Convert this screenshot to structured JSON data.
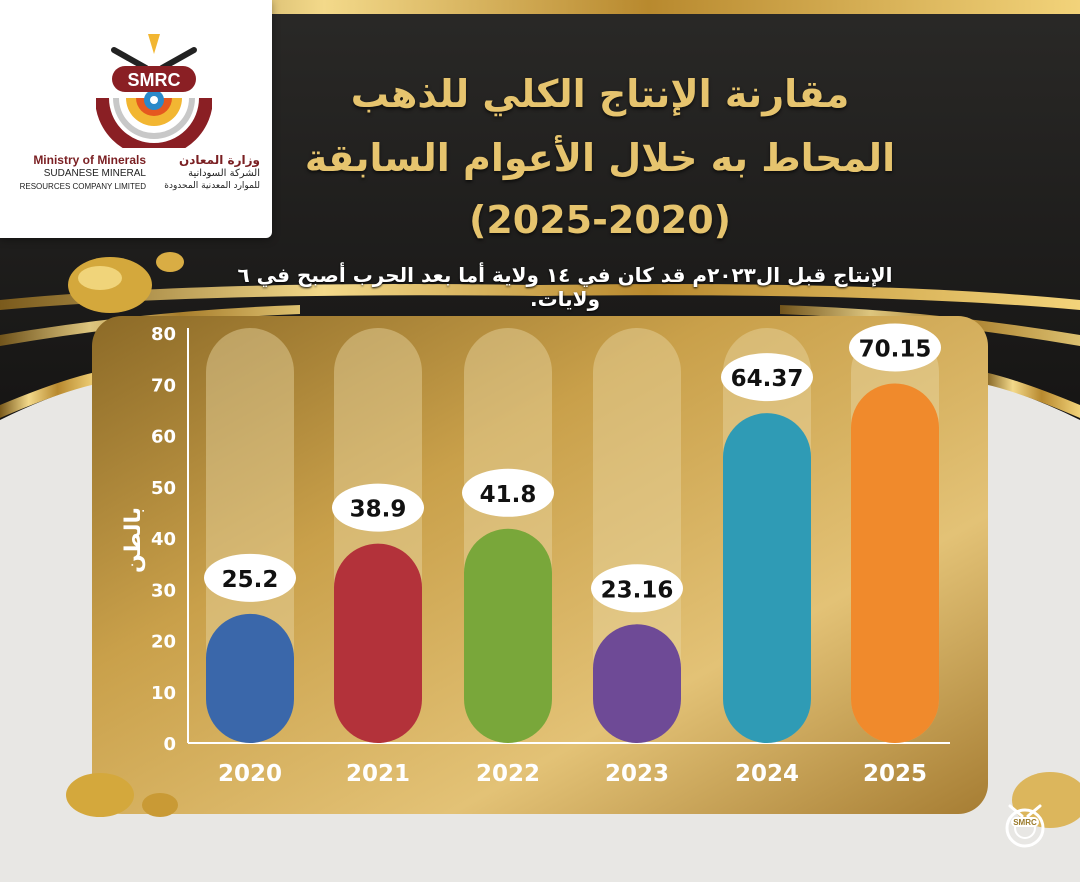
{
  "logo": {
    "acronym": "SMRC",
    "en_line1": "Ministry of Minerals",
    "en_line2": "SUDANESE MINERAL",
    "en_line3": "RESOURCES COMPANY LIMITED",
    "ar_line1": "وزارة المعادن",
    "ar_line2": "الشركة السودانية",
    "ar_line3": "للموارد المعدنية المحدودة"
  },
  "corner_logo": {
    "acronym": "SMRC"
  },
  "colors": {
    "gold": "#e6c46e",
    "panel_gold": "#c9a04a",
    "bar_2020": "#3a67aa",
    "bar_2021": "#b3323a",
    "bar_2022": "#79a73a",
    "bar_2023": "#6e4a96",
    "bar_2024": "#2f9bb5",
    "bar_2025": "#f08a2c"
  },
  "chart_data": {
    "type": "bar",
    "title_line1": "مقارنة الإنتاج الكلي للذهب",
    "title_line2": "المحاط به خلال الأعوام السابقة",
    "title_line3": "(2025-2020)",
    "subtitle": "الإنتاج قبل ال٢٠٢٣م قد كان في ١٤ ولاية أما بعد الحرب أصبح في ٦ ولايات.",
    "ylabel": "بالطن",
    "xlabel": "",
    "ylim": [
      0,
      80
    ],
    "yticks": [
      "0",
      "10",
      "20",
      "30",
      "40",
      "50",
      "60",
      "70",
      "80"
    ],
    "categories": [
      "2020",
      "2021",
      "2022",
      "2023",
      "2024",
      "2025"
    ],
    "values": [
      25.2,
      38.9,
      41.8,
      23.16,
      64.37,
      70.15
    ],
    "value_labels": [
      "25.2",
      "38.9",
      "41.8",
      "23.16",
      "64.37",
      "70.15"
    ],
    "bar_colors": [
      "#3a67aa",
      "#b3323a",
      "#79a73a",
      "#6e4a96",
      "#2f9bb5",
      "#f08a2c"
    ],
    "grid": false,
    "legend": "none"
  }
}
